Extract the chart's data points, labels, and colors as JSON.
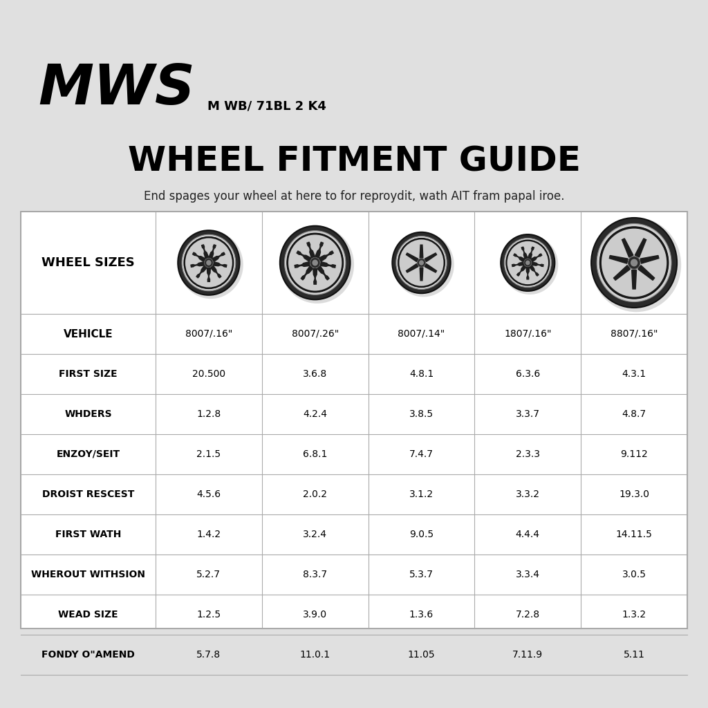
{
  "background_color": "#e0e0e0",
  "table_bg": "#ffffff",
  "brand": "MWS",
  "model": "M WB/ 71BL 2 K4",
  "title": "WHEEL FITMENT GUIDE",
  "subtitle": "End spages your wheel at here to for reproydit, wath AIT fram papal iroe.",
  "col_header": "WHEEL SIZES",
  "vehicle_label": "VEHICLE",
  "vehicle_sizes": [
    "8007/.16\"",
    "8007/.26\"",
    "8007/.14\"",
    "1807/.16\"",
    "8807/.16\""
  ],
  "rows": [
    {
      "label": "FIRST SIZE",
      "values": [
        "20.500",
        "3.6.8",
        "4.8.1",
        "6.3.6",
        "4.3.1"
      ]
    },
    {
      "label": "WHDERS",
      "values": [
        "1.2.8",
        "4.2.4",
        "3.8.5",
        "3.3.7",
        "4.8.7"
      ]
    },
    {
      "label": "ENZOY/SEIT",
      "values": [
        "2.1.5",
        "6.8.1",
        "7.4.7",
        "2.3.3",
        "9.112"
      ]
    },
    {
      "label": "DROIST RESCEST",
      "values": [
        "4.5.6",
        "2.0.2",
        "3.1.2",
        "3.3.2",
        "19.3.0"
      ]
    },
    {
      "label": "FIRST WATH",
      "values": [
        "1.4.2",
        "3.2.4",
        "9.0.5",
        "4.4.4",
        "14.11.5"
      ]
    },
    {
      "label": "WHEROUT WITHSION",
      "values": [
        "5.2.7",
        "8.3.7",
        "5.3.7",
        "3.3.4",
        "3.0.5"
      ]
    },
    {
      "label": "WEAD SIZE",
      "values": [
        "1.2.5",
        "3.9.0",
        "1.3.6",
        "7.2.8",
        "1.3.2"
      ]
    },
    {
      "label": "FONDY O\"AMEND",
      "values": [
        "5.7.8",
        "11.0.1",
        "11.05",
        "7.11.9",
        "5.11"
      ]
    }
  ],
  "wheel_sizes_relative": [
    0.72,
    0.82,
    0.68,
    0.63,
    1.0
  ],
  "n_spokes": [
    9,
    9,
    6,
    9,
    7
  ],
  "header_font_size": 11,
  "data_font_size": 10,
  "label_font_size": 10,
  "brand_fontsize": 58,
  "title_fontsize": 36,
  "subtitle_fontsize": 12
}
